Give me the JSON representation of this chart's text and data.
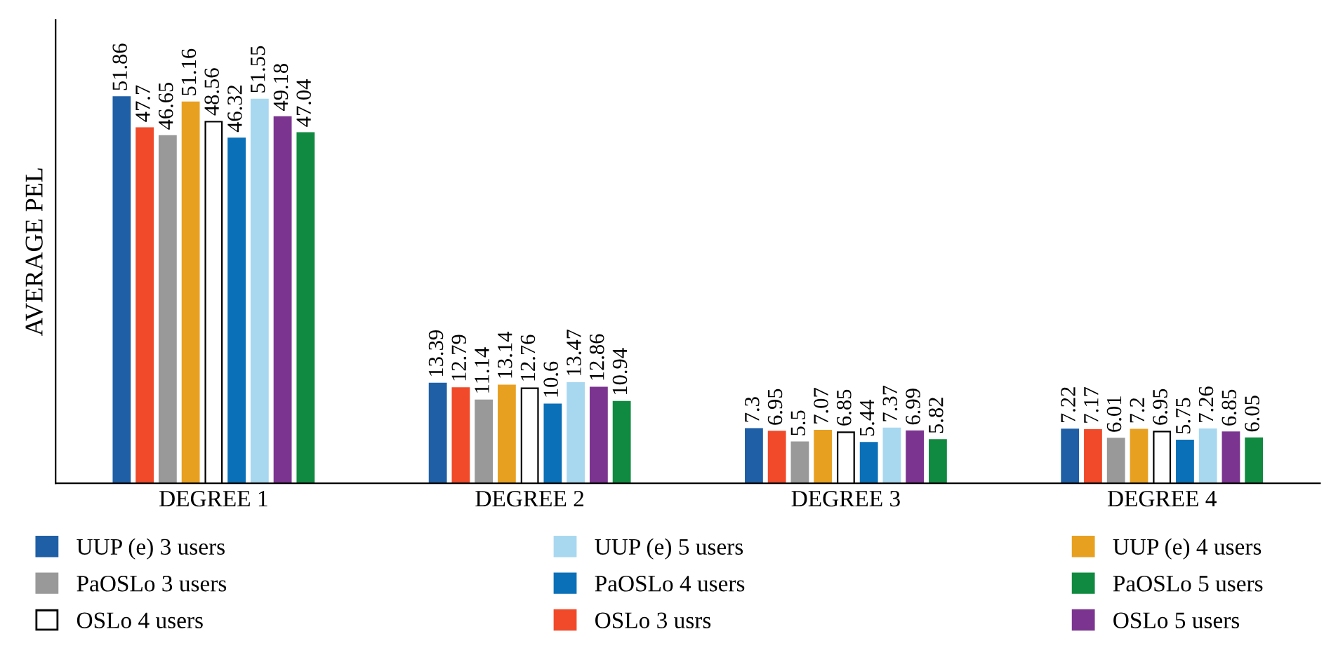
{
  "chart_data": {
    "type": "bar",
    "ylabel": "AVERAGE PEL",
    "categories": [
      "DEGREE 1",
      "DEGREE 2",
      "DEGREE 3",
      "DEGREE 4"
    ],
    "series": [
      {
        "name": "UUP (e) 3 users",
        "color": "#1f5fa6",
        "values": [
          51.86,
          13.39,
          7.3,
          7.22
        ]
      },
      {
        "name": "OSLo 3 usrs",
        "color": "#f04a2a",
        "values": [
          47.7,
          12.79,
          6.95,
          7.17
        ]
      },
      {
        "name": "PaOSLo 3 users",
        "color": "#999999",
        "values": [
          46.65,
          11.14,
          5.5,
          6.01
        ]
      },
      {
        "name": "UUP (e) 4 users",
        "color": "#e8a020",
        "values": [
          51.16,
          13.14,
          7.07,
          7.2
        ]
      },
      {
        "name": "OSLo 4 users",
        "color": "#ffffff",
        "values": [
          48.56,
          12.76,
          6.85,
          6.95
        ]
      },
      {
        "name": "PaOSLo 4 users",
        "color": "#0a70b8",
        "values": [
          46.32,
          10.6,
          5.44,
          5.75
        ]
      },
      {
        "name": "UUP (e) 5 users",
        "color": "#a8d8f0",
        "values": [
          51.55,
          13.47,
          7.37,
          7.26
        ]
      },
      {
        "name": "OSLo 5 users",
        "color": "#7b3590",
        "values": [
          49.18,
          12.86,
          6.99,
          6.85
        ]
      },
      {
        "name": "PaOSLo 5 users",
        "color": "#108a40",
        "values": [
          47.04,
          10.94,
          5.82,
          6.05
        ]
      }
    ],
    "data_labels": true,
    "legend": "bottom",
    "grid": false
  }
}
